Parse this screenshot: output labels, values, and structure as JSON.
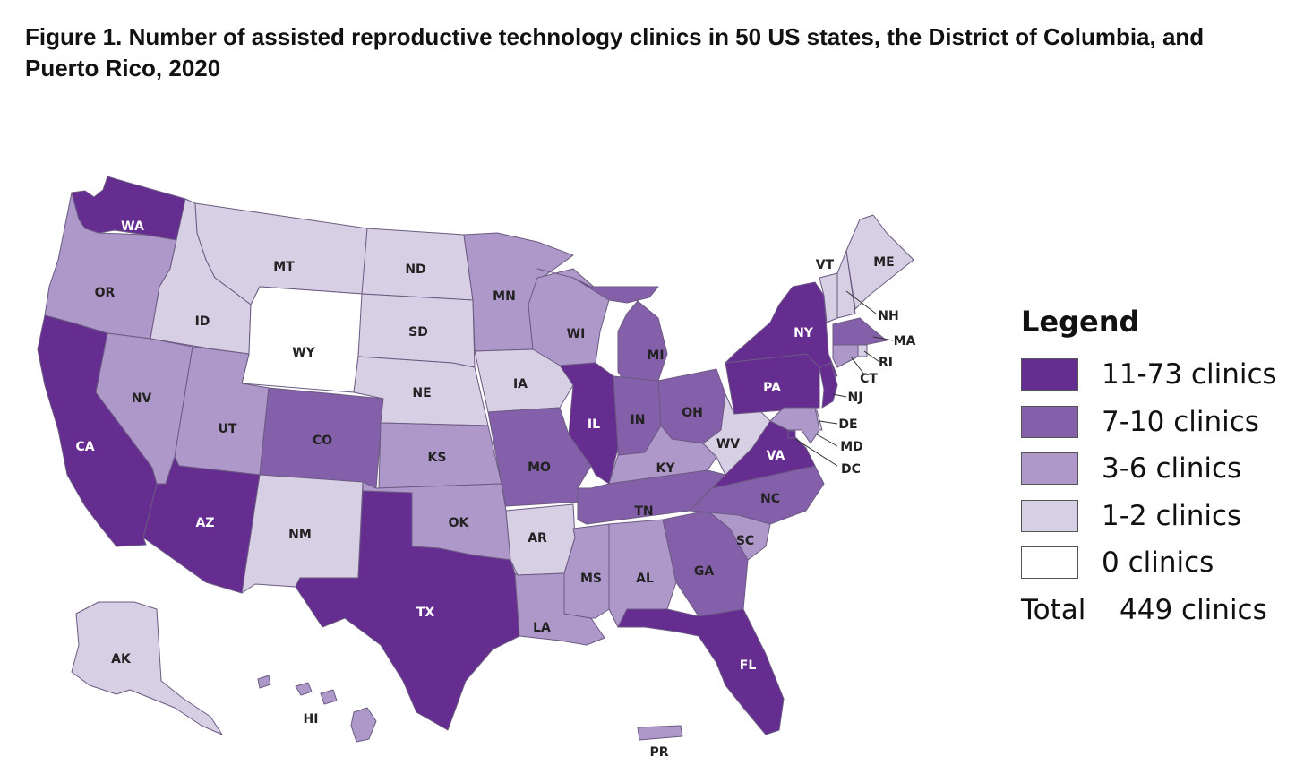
{
  "title": "Figure 1. Number of assisted reproductive technology clinics in 50 US states, the District of Columbia, and Puerto Rico, 2020",
  "legend": {
    "title": "Legend",
    "items": [
      {
        "key": "t1",
        "label": "11-73 clinics",
        "color": "#662d91"
      },
      {
        "key": "t2",
        "label": "7-10 clinics",
        "color": "#8560aa"
      },
      {
        "key": "t3",
        "label": "3-6 clinics",
        "color": "#ad98c9"
      },
      {
        "key": "t4",
        "label": "1-2 clinics",
        "color": "#d7cfe4"
      },
      {
        "key": "t5",
        "label": "0 clinics",
        "color": "#ffffff"
      }
    ],
    "total_label": "Total",
    "total_value": "449 clinics"
  },
  "states": [
    {
      "abbr": "WA",
      "tier": "t1"
    },
    {
      "abbr": "OR",
      "tier": "t3"
    },
    {
      "abbr": "CA",
      "tier": "t1"
    },
    {
      "abbr": "ID",
      "tier": "t4"
    },
    {
      "abbr": "NV",
      "tier": "t3"
    },
    {
      "abbr": "MT",
      "tier": "t4"
    },
    {
      "abbr": "WY",
      "tier": "t5"
    },
    {
      "abbr": "UT",
      "tier": "t3"
    },
    {
      "abbr": "AZ",
      "tier": "t1"
    },
    {
      "abbr": "CO",
      "tier": "t2"
    },
    {
      "abbr": "NM",
      "tier": "t4"
    },
    {
      "abbr": "ND",
      "tier": "t4"
    },
    {
      "abbr": "SD",
      "tier": "t4"
    },
    {
      "abbr": "NE",
      "tier": "t4"
    },
    {
      "abbr": "KS",
      "tier": "t3"
    },
    {
      "abbr": "OK",
      "tier": "t3"
    },
    {
      "abbr": "TX",
      "tier": "t1"
    },
    {
      "abbr": "MN",
      "tier": "t3"
    },
    {
      "abbr": "IA",
      "tier": "t4"
    },
    {
      "abbr": "MO",
      "tier": "t2"
    },
    {
      "abbr": "AR",
      "tier": "t4"
    },
    {
      "abbr": "LA",
      "tier": "t3"
    },
    {
      "abbr": "WI",
      "tier": "t3"
    },
    {
      "abbr": "IL",
      "tier": "t1"
    },
    {
      "abbr": "MI",
      "tier": "t2"
    },
    {
      "abbr": "IN",
      "tier": "t2"
    },
    {
      "abbr": "OH",
      "tier": "t2"
    },
    {
      "abbr": "KY",
      "tier": "t3"
    },
    {
      "abbr": "TN",
      "tier": "t2"
    },
    {
      "abbr": "MS",
      "tier": "t3"
    },
    {
      "abbr": "AL",
      "tier": "t3"
    },
    {
      "abbr": "GA",
      "tier": "t2"
    },
    {
      "abbr": "FL",
      "tier": "t1"
    },
    {
      "abbr": "SC",
      "tier": "t3"
    },
    {
      "abbr": "NC",
      "tier": "t2"
    },
    {
      "abbr": "VA",
      "tier": "t1"
    },
    {
      "abbr": "WV",
      "tier": "t4"
    },
    {
      "abbr": "PA",
      "tier": "t1"
    },
    {
      "abbr": "NY",
      "tier": "t1"
    },
    {
      "abbr": "VT",
      "tier": "t4"
    },
    {
      "abbr": "NH",
      "tier": "t4"
    },
    {
      "abbr": "ME",
      "tier": "t4"
    },
    {
      "abbr": "MA",
      "tier": "t2"
    },
    {
      "abbr": "RI",
      "tier": "t4"
    },
    {
      "abbr": "CT",
      "tier": "t3"
    },
    {
      "abbr": "NJ",
      "tier": "t1"
    },
    {
      "abbr": "DE",
      "tier": "t4"
    },
    {
      "abbr": "MD",
      "tier": "t3"
    },
    {
      "abbr": "DC",
      "tier": "t1"
    },
    {
      "abbr": "AK",
      "tier": "t4"
    },
    {
      "abbr": "HI",
      "tier": "t3"
    },
    {
      "abbr": "PR",
      "tier": "t3"
    }
  ]
}
